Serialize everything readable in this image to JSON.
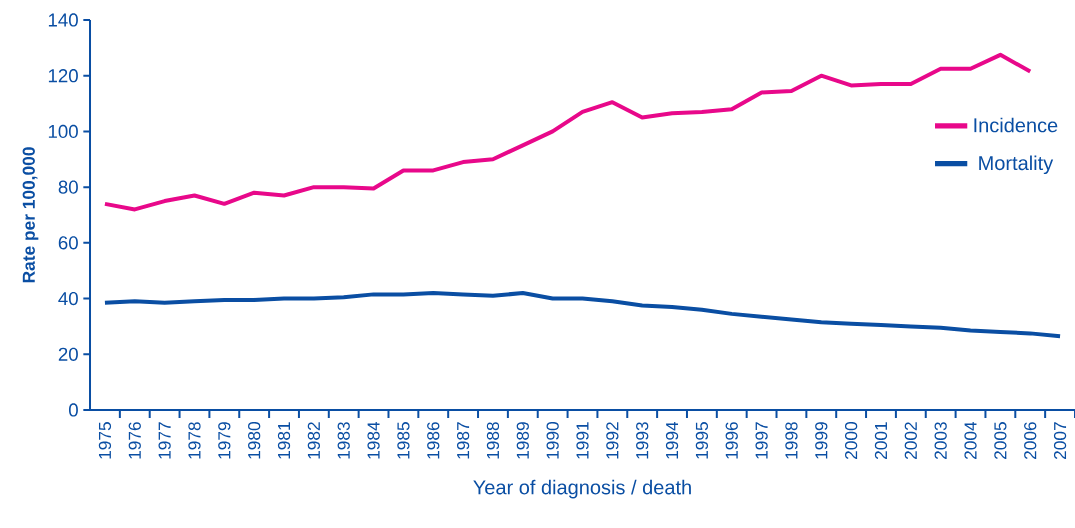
{
  "chart_data": {
    "type": "line",
    "xlabel": "Year of diagnosis / death",
    "ylabel": "Rate per 100,000",
    "categories": [
      "1975",
      "1976",
      "1977",
      "1978",
      "1979",
      "1980",
      "1981",
      "1982",
      "1983",
      "1984",
      "1985",
      "1986",
      "1987",
      "1988",
      "1989",
      "1990",
      "1991",
      "1992",
      "1993",
      "1994",
      "1995",
      "1996",
      "1997",
      "1998",
      "1999",
      "2000",
      "2001",
      "2002",
      "2003",
      "2004",
      "2005",
      "2006",
      "2007"
    ],
    "series": [
      {
        "name": "Incidence",
        "color": "#e8088a",
        "values": [
          74,
          72,
          75,
          77,
          74,
          78,
          77,
          80,
          80,
          79.5,
          86,
          86,
          89,
          90,
          95,
          100,
          107,
          110.5,
          105,
          106.5,
          107,
          108,
          114,
          114.5,
          120,
          116.5,
          117,
          117,
          122.5,
          122.5,
          127.5,
          121.5,
          null
        ]
      },
      {
        "name": "Mortality",
        "color": "#0a4ea3",
        "values": [
          38.5,
          39,
          38.5,
          39,
          39.5,
          39.5,
          40,
          40,
          40.5,
          41.5,
          41.5,
          42,
          41.5,
          41,
          42,
          40,
          40,
          39,
          37.5,
          37,
          36,
          34.5,
          33.5,
          32.5,
          31.5,
          31,
          30.5,
          30,
          29.5,
          28.5,
          28,
          27.5,
          26.5
        ]
      }
    ],
    "ylim": [
      0,
      140
    ],
    "yticks": [
      0,
      20,
      40,
      60,
      80,
      100,
      120,
      140
    ],
    "grid": false,
    "legend": "right",
    "marker": "none",
    "line_style": "solid"
  }
}
